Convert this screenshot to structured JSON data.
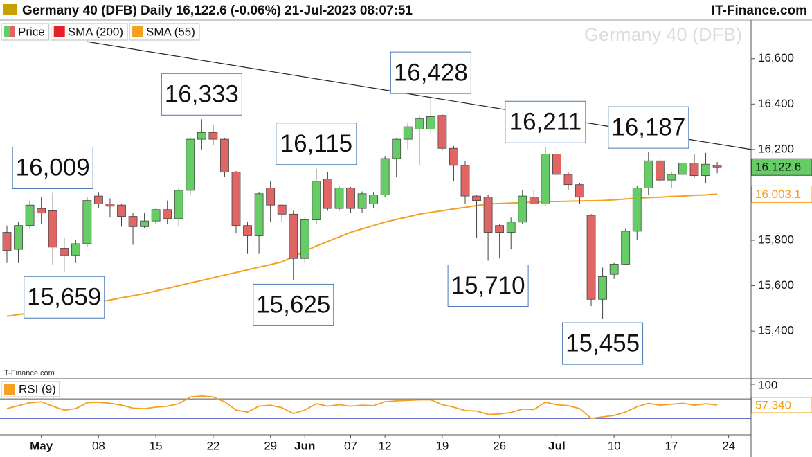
{
  "header": {
    "title": "Germany 40 (DFB) Daily 16,122.6 (-0.06%) 21-Jul-2023 08:07:51",
    "brand": "IT-Finance.com"
  },
  "chart_data": {
    "type": "candlestick",
    "watermark": "Germany 40 (DFB)",
    "source": "IT-Finance.com",
    "categories": [
      null,
      null,
      null,
      "May",
      null,
      null,
      null,
      null,
      "08",
      null,
      null,
      null,
      null,
      "15",
      null,
      null,
      null,
      null,
      "22",
      null,
      null,
      null,
      null,
      "29",
      null,
      null,
      "Jun",
      null,
      null,
      null,
      "07",
      null,
      null,
      "12",
      null,
      null,
      null,
      null,
      "19",
      null,
      null,
      null,
      null,
      "26",
      null,
      null,
      null,
      null,
      "Jul",
      null,
      null,
      null,
      null,
      "10",
      null,
      null,
      null,
      null,
      "17",
      null,
      null,
      null,
      null,
      "24"
    ],
    "series": [
      {
        "name": "Price",
        "up_color": "#66cc66",
        "down_color": "#e06666",
        "open": [
          15835,
          15760,
          15865,
          15940,
          15930,
          15765,
          15735,
          15785,
          15995,
          15960,
          15955,
          15905,
          15860,
          15885,
          15935,
          15895,
          16020,
          16245,
          16275,
          16245,
          16100,
          15865,
          15820,
          16030,
          15955,
          15915,
          15720,
          15890,
          16070,
          15940,
          16030,
          15940,
          15960,
          16000,
          16160,
          16245,
          16290,
          16290,
          16350,
          16205,
          16130,
          15995,
          15990,
          15865,
          15835,
          15880,
          15990,
          15960,
          16180,
          16090,
          16045,
          15910,
          15540,
          15650,
          15695,
          15840,
          16030,
          16150,
          16065,
          16090,
          16140,
          16085,
          16130,
          null
        ],
        "high": [
          15865,
          15880,
          15975,
          15990,
          16009,
          15810,
          15800,
          15990,
          16010,
          15985,
          15960,
          15920,
          15920,
          15940,
          15975,
          16030,
          16250,
          16333,
          16310,
          16250,
          16105,
          15880,
          16010,
          16060,
          15960,
          15930,
          15900,
          16115,
          16100,
          16040,
          16035,
          16015,
          16010,
          16170,
          16250,
          16320,
          16350,
          16428,
          16355,
          16215,
          16150,
          16000,
          16000,
          15870,
          15900,
          16020,
          16020,
          16211,
          16200,
          16100,
          16050,
          15915,
          15680,
          15700,
          15850,
          16040,
          16187,
          16160,
          16100,
          16155,
          16180,
          16185,
          16145,
          null
        ],
        "low": [
          15700,
          15700,
          15850,
          15870,
          15690,
          15659,
          15700,
          15770,
          15940,
          15900,
          15860,
          15780,
          15855,
          15870,
          15870,
          15860,
          16000,
          16200,
          16220,
          16080,
          15830,
          15740,
          15740,
          15880,
          15880,
          15625,
          15700,
          15870,
          15930,
          15930,
          15920,
          15920,
          15940,
          15990,
          16080,
          16200,
          16130,
          16270,
          16195,
          16060,
          15960,
          15810,
          15710,
          15720,
          15760,
          15870,
          15960,
          15950,
          16080,
          16020,
          15960,
          15510,
          15455,
          15630,
          15690,
          15800,
          16000,
          16050,
          16030,
          16060,
          16075,
          16050,
          16095,
          null
        ],
        "close": [
          15755,
          15865,
          15955,
          15920,
          15770,
          15735,
          15785,
          15975,
          15960,
          15950,
          15905,
          15860,
          15885,
          15935,
          15895,
          16020,
          16245,
          16275,
          16245,
          16100,
          15865,
          15820,
          16005,
          15955,
          15915,
          15720,
          15890,
          16060,
          15940,
          16030,
          15940,
          16005,
          16000,
          16160,
          16245,
          16300,
          16335,
          16345,
          16205,
          16130,
          15995,
          15975,
          15835,
          15835,
          15880,
          15995,
          15960,
          16180,
          16090,
          16045,
          15990,
          15540,
          15640,
          15695,
          15840,
          16030,
          16150,
          16065,
          16090,
          16140,
          16085,
          16135,
          16122.6,
          null
        ],
        "high_labels": [
          null,
          null,
          null,
          null,
          "16,009",
          null,
          null,
          null,
          null,
          null,
          null,
          null,
          null,
          null,
          null,
          null,
          null,
          "16,333",
          null,
          null,
          null,
          null,
          null,
          null,
          null,
          null,
          null,
          "16,115",
          null,
          null,
          null,
          null,
          null,
          null,
          null,
          null,
          null,
          "16,428",
          null,
          null,
          null,
          null,
          null,
          null,
          null,
          null,
          null,
          "16,211",
          null,
          null,
          null,
          null,
          null,
          null,
          null,
          null,
          "16,187",
          null,
          null,
          null,
          null,
          null,
          null,
          null
        ],
        "low_labels": [
          null,
          null,
          null,
          null,
          null,
          "15,659",
          null,
          null,
          null,
          null,
          null,
          null,
          null,
          null,
          null,
          null,
          null,
          null,
          null,
          null,
          null,
          null,
          null,
          null,
          null,
          "15,625",
          null,
          null,
          null,
          null,
          null,
          null,
          null,
          null,
          null,
          null,
          null,
          null,
          null,
          null,
          null,
          null,
          "15,710",
          null,
          null,
          null,
          null,
          null,
          null,
          null,
          null,
          null,
          "15,455",
          null,
          null,
          null,
          null,
          null,
          null,
          null,
          null,
          null,
          null,
          null
        ],
        "last": {
          "value": 16122.6,
          "label": "16,122.6"
        }
      },
      {
        "name": "SMA (200)",
        "color": "#e8202a"
      },
      {
        "name": "SMA (55)",
        "color": "#f5a020",
        "values": [
          15465,
          15473,
          15480,
          15488,
          15495,
          15503,
          15510,
          15519,
          15528,
          15537,
          15547,
          15556,
          15565,
          15577,
          15588,
          15600,
          15612,
          15623,
          15635,
          15647,
          15658,
          15670,
          15682,
          15693,
          15705,
          15728,
          15752,
          15775,
          15795,
          15815,
          15835,
          15850,
          15865,
          15880,
          15892,
          15903,
          15915,
          15923,
          15930,
          15938,
          15945,
          15953,
          15960,
          15962,
          15964,
          15966,
          15968,
          15970,
          15971,
          15972,
          15973,
          15974,
          15975,
          15978,
          15982,
          15985,
          15988,
          15990,
          15993,
          15995,
          15998,
          16000,
          16003.1,
          null
        ],
        "last": {
          "value": 16003.1,
          "label": "16,003.1"
        }
      }
    ],
    "trendline": {
      "start": 16675,
      "end": 16200,
      "color": "#222222"
    },
    "ylim": [
      15190,
      16770
    ],
    "yticks": [
      {
        "value": 15400,
        "label": "15,400"
      },
      {
        "value": 15600,
        "label": "15,600"
      },
      {
        "value": 15800,
        "label": "15,800"
      },
      {
        "value": 16000,
        "label": "16,000"
      },
      {
        "value": 16200,
        "label": "16,200"
      },
      {
        "value": 16400,
        "label": "16,400"
      },
      {
        "value": 16600,
        "label": "16,600"
      }
    ],
    "rsi": {
      "name": "RSI (9)",
      "color": "#f5a020",
      "values": [
        50,
        56,
        62,
        64,
        55,
        47,
        50,
        62,
        63,
        61,
        57,
        51,
        50,
        53,
        55,
        60,
        74,
        76,
        74,
        64,
        47,
        43,
        55,
        57,
        52,
        40,
        47,
        60,
        55,
        58,
        55,
        57,
        56,
        64,
        66,
        67,
        68,
        68,
        58,
        53,
        46,
        45,
        38,
        39,
        42,
        49,
        48,
        63,
        58,
        56,
        50,
        30,
        33,
        36,
        43,
        54,
        61,
        57,
        59,
        61,
        57,
        60,
        57.34,
        null
      ],
      "ylim": [
        -4,
        110
      ],
      "yticks": [
        100
      ],
      "levels": [
        30,
        70
      ],
      "last": {
        "value": 57.34,
        "label": "57.340"
      }
    }
  }
}
